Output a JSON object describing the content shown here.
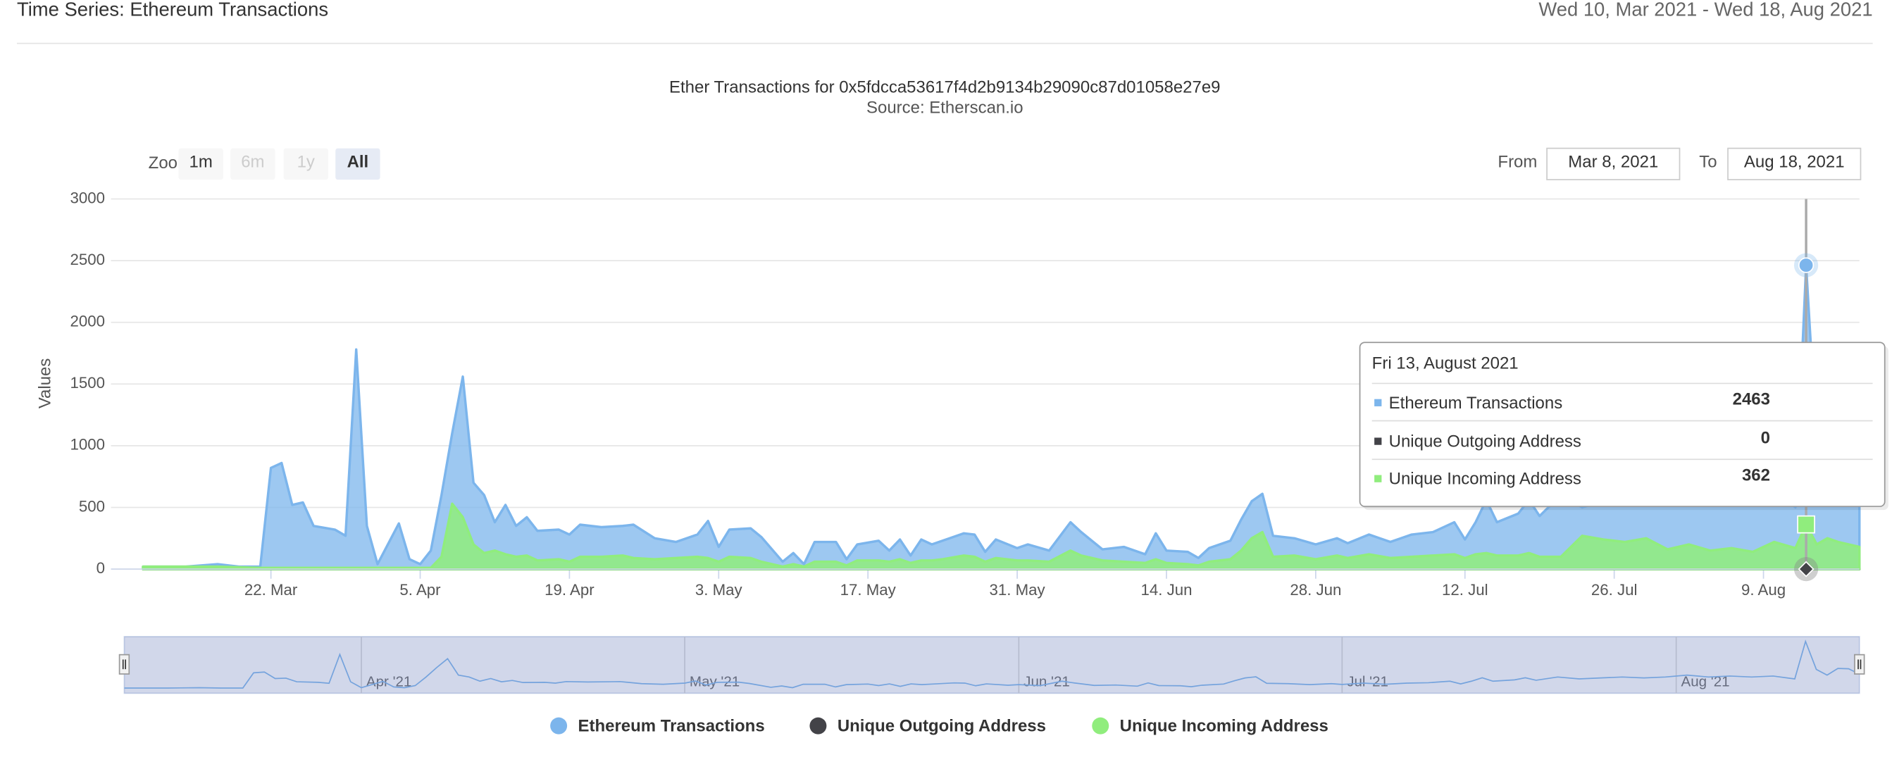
{
  "header": {
    "title": "Time Series: Ethereum Transactions",
    "range": "Wed 10, Mar 2021 - Wed 18, Aug 2021"
  },
  "controls": {
    "zoom_label": "Zoom",
    "zoom_buttons": [
      "1m",
      "6m",
      "1y",
      "All"
    ],
    "from_label": "From",
    "from": "Mar 8, 2021",
    "to_label": "To",
    "to": "Aug 18, 2021"
  },
  "chart_data": {
    "type": "area",
    "title": "Ether Transactions for 0x5fdcca53617f4d2b9134b29090c87d01058e27e9",
    "subtitle": "Source: Etherscan.io",
    "y_label": "Values",
    "grid": true,
    "x": [
      "2021-03-10",
      "2021-03-14",
      "2021-03-17",
      "2021-03-19",
      "2021-03-21",
      "2021-03-22",
      "2021-03-23",
      "2021-03-24",
      "2021-03-25",
      "2021-03-26",
      "2021-03-28",
      "2021-03-29",
      "2021-03-30",
      "2021-03-31",
      "2021-04-01",
      "2021-04-03",
      "2021-04-04",
      "2021-04-05",
      "2021-04-06",
      "2021-04-07",
      "2021-04-08",
      "2021-04-09",
      "2021-04-10",
      "2021-04-11",
      "2021-04-12",
      "2021-04-13",
      "2021-04-14",
      "2021-04-15",
      "2021-04-16",
      "2021-04-18",
      "2021-04-19",
      "2021-04-20",
      "2021-04-22",
      "2021-04-24",
      "2021-04-25",
      "2021-04-27",
      "2021-04-29",
      "2021-05-01",
      "2021-05-02",
      "2021-05-03",
      "2021-05-04",
      "2021-05-06",
      "2021-05-07",
      "2021-05-09",
      "2021-05-10",
      "2021-05-11",
      "2021-05-12",
      "2021-05-14",
      "2021-05-15",
      "2021-05-16",
      "2021-05-18",
      "2021-05-19",
      "2021-05-20",
      "2021-05-21",
      "2021-05-22",
      "2021-05-23",
      "2021-05-24",
      "2021-05-26",
      "2021-05-27",
      "2021-05-28",
      "2021-05-29",
      "2021-05-31",
      "2021-06-01",
      "2021-06-03",
      "2021-06-05",
      "2021-06-06",
      "2021-06-08",
      "2021-06-10",
      "2021-06-12",
      "2021-06-13",
      "2021-06-14",
      "2021-06-16",
      "2021-06-17",
      "2021-06-18",
      "2021-06-20",
      "2021-06-21",
      "2021-06-22",
      "2021-06-23",
      "2021-06-24",
      "2021-06-26",
      "2021-06-28",
      "2021-06-30",
      "2021-07-01",
      "2021-07-03",
      "2021-07-05",
      "2021-07-07",
      "2021-07-09",
      "2021-07-11",
      "2021-07-12",
      "2021-07-13",
      "2021-07-14",
      "2021-07-15",
      "2021-07-17",
      "2021-07-18",
      "2021-07-19",
      "2021-07-21",
      "2021-07-23",
      "2021-07-25",
      "2021-07-27",
      "2021-07-29",
      "2021-07-31",
      "2021-08-02",
      "2021-08-04",
      "2021-08-06",
      "2021-08-08",
      "2021-08-10",
      "2021-08-12",
      "2021-08-13",
      "2021-08-14",
      "2021-08-15",
      "2021-08-16",
      "2021-08-17",
      "2021-08-18"
    ],
    "series": [
      {
        "name": "Ethereum Transactions",
        "color": "#7cb5ec",
        "values": [
          20,
          20,
          40,
          20,
          20,
          820,
          860,
          520,
          540,
          350,
          320,
          270,
          1780,
          350,
          40,
          370,
          80,
          40,
          150,
          600,
          1100,
          1560,
          700,
          600,
          380,
          520,
          350,
          420,
          310,
          320,
          280,
          360,
          340,
          350,
          360,
          250,
          220,
          280,
          390,
          180,
          320,
          330,
          260,
          60,
          130,
          40,
          220,
          220,
          80,
          200,
          230,
          150,
          240,
          110,
          240,
          200,
          230,
          290,
          280,
          140,
          240,
          170,
          200,
          150,
          380,
          300,
          160,
          180,
          120,
          290,
          150,
          140,
          90,
          170,
          230,
          400,
          550,
          610,
          270,
          250,
          200,
          250,
          210,
          280,
          220,
          280,
          300,
          380,
          240,
          380,
          560,
          380,
          450,
          560,
          430,
          600,
          500,
          550,
          600,
          550,
          600,
          700,
          600,
          650,
          600,
          650,
          500,
          2463,
          1000,
          700,
          1050,
          1030,
          750
        ]
      },
      {
        "name": "Unique Outgoing Address",
        "color": "#434348",
        "values": [
          0,
          0,
          0,
          0,
          0,
          0,
          0,
          0,
          0,
          0,
          0,
          0,
          0,
          0,
          0,
          0,
          0,
          0,
          0,
          0,
          0,
          0,
          0,
          0,
          0,
          0,
          0,
          0,
          0,
          0,
          0,
          0,
          0,
          0,
          0,
          0,
          0,
          0,
          0,
          0,
          0,
          0,
          0,
          0,
          0,
          0,
          0,
          0,
          0,
          0,
          0,
          0,
          0,
          0,
          0,
          0,
          0,
          0,
          0,
          0,
          0,
          0,
          0,
          0,
          0,
          0,
          0,
          0,
          0,
          0,
          0,
          0,
          0,
          0,
          0,
          0,
          0,
          0,
          0,
          0,
          0,
          0,
          0,
          0,
          0,
          0,
          0,
          0,
          0,
          0,
          0,
          0,
          0,
          0,
          0,
          0,
          0,
          0,
          0,
          0,
          0,
          0,
          0,
          0,
          0,
          0,
          0,
          0,
          0,
          0,
          0,
          0,
          0
        ]
      },
      {
        "name": "Unique Incoming Address",
        "color": "#90ed7d",
        "values": [
          20,
          20,
          20,
          15,
          10,
          10,
          10,
          10,
          10,
          10,
          10,
          10,
          10,
          10,
          10,
          10,
          10,
          10,
          10,
          100,
          530,
          420,
          200,
          130,
          150,
          120,
          100,
          110,
          70,
          80,
          60,
          100,
          100,
          110,
          90,
          80,
          90,
          100,
          90,
          60,
          100,
          90,
          60,
          20,
          40,
          20,
          60,
          60,
          30,
          70,
          70,
          60,
          80,
          50,
          70,
          70,
          80,
          110,
          100,
          60,
          90,
          70,
          70,
          60,
          150,
          110,
          70,
          60,
          50,
          80,
          50,
          40,
          30,
          60,
          80,
          150,
          250,
          300,
          100,
          110,
          80,
          110,
          90,
          120,
          90,
          100,
          110,
          120,
          90,
          120,
          130,
          110,
          110,
          130,
          100,
          100,
          270,
          240,
          220,
          250,
          160,
          200,
          150,
          170,
          140,
          220,
          170,
          362,
          200,
          250,
          220,
          200,
          180
        ]
      }
    ],
    "xlim": [
      "2021-03-07",
      "2021-08-18"
    ],
    "xticks": [
      {
        "value": "2021-03-22",
        "label": "22. Mar"
      },
      {
        "value": "2021-04-05",
        "label": "5. Apr"
      },
      {
        "value": "2021-04-19",
        "label": "19. Apr"
      },
      {
        "value": "2021-05-03",
        "label": "3. May"
      },
      {
        "value": "2021-05-17",
        "label": "17. May"
      },
      {
        "value": "2021-05-31",
        "label": "31. May"
      },
      {
        "value": "2021-06-14",
        "label": "14. Jun"
      },
      {
        "value": "2021-06-28",
        "label": "28. Jun"
      },
      {
        "value": "2021-07-12",
        "label": "12. Jul"
      },
      {
        "value": "2021-07-26",
        "label": "26. Jul"
      },
      {
        "value": "2021-08-09",
        "label": "9. Aug"
      }
    ],
    "ylim": [
      0,
      3000
    ],
    "yticks": [
      0,
      500,
      1000,
      1500,
      2000,
      2500,
      3000
    ],
    "navigator": {
      "xticks": [
        {
          "value": "2021-04-01",
          "label": "Apr '21"
        },
        {
          "value": "2021-05-01",
          "label": "May '21"
        },
        {
          "value": "2021-06-01",
          "label": "Jun '21"
        },
        {
          "value": "2021-07-01",
          "label": "Jul '21"
        },
        {
          "value": "2021-08-01",
          "label": "Aug '21"
        }
      ]
    },
    "tooltip": {
      "x": "2021-08-13",
      "title": "Fri 13, August 2021"
    }
  }
}
